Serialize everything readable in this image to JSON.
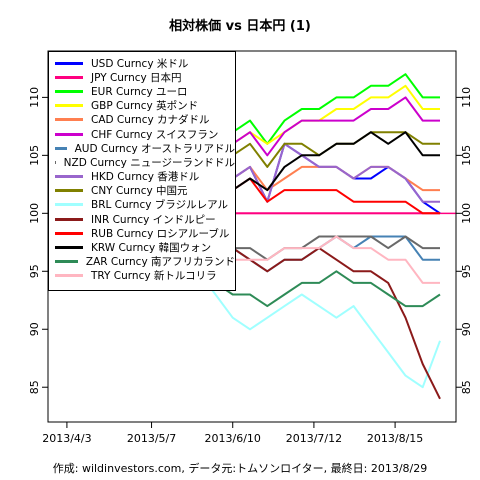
{
  "title": "相対株価 vs 日本円 (1)",
  "footer": "作成: wildinvestors.com, データ元:トムソンロイター, 最終日: 2013/8/29",
  "chart_data": {
    "type": "line",
    "title": "相対株価 vs 日本円 (1)",
    "xlabel": "",
    "ylabel": "",
    "x_ticks": [
      "2013/4/3",
      "2013/5/7",
      "2013/6/10",
      "2013/7/12",
      "2013/8/15"
    ],
    "y_ticks": [
      85,
      90,
      95,
      100,
      105,
      110
    ],
    "ylim": [
      82,
      114
    ],
    "grid": false,
    "legend_position": "top-left",
    "reference_line": 100,
    "x": [
      "2013/4/1",
      "2013/4/8",
      "2013/4/15",
      "2013/4/22",
      "2013/4/29",
      "2013/5/6",
      "2013/5/13",
      "2013/5/20",
      "2013/5/27",
      "2013/6/3",
      "2013/6/10",
      "2013/6/17",
      "2013/6/24",
      "2013/7/1",
      "2013/7/8",
      "2013/7/15",
      "2013/7/22",
      "2013/7/29",
      "2013/8/5",
      "2013/8/12",
      "2013/8/19",
      "2013/8/26",
      "2013/8/29"
    ],
    "series": [
      {
        "name": "USD Curncy 米ドル",
        "color": "#0000ff",
        "values": [
          100,
          102,
          104,
          105,
          106,
          107,
          108,
          110,
          109,
          106,
          103,
          104,
          101,
          106,
          105,
          104,
          104,
          103,
          103,
          104,
          103,
          101,
          100
        ]
      },
      {
        "name": "JPY Curncy 日本円",
        "color": "#ff0080",
        "values": [
          100,
          100,
          100,
          100,
          100,
          100,
          100,
          100,
          100,
          100,
          100,
          100,
          100,
          100,
          100,
          100,
          100,
          100,
          100,
          100,
          100,
          100,
          100
        ]
      },
      {
        "name": "EUR Curncy ユーロ",
        "color": "#00ff00",
        "values": [
          100,
          103,
          105,
          106,
          107,
          109,
          110,
          112,
          111,
          109,
          107,
          108,
          106,
          108,
          109,
          109,
          110,
          110,
          111,
          111,
          112,
          110,
          110
        ]
      },
      {
        "name": "GBP Curncy 英ポンド",
        "color": "#ffff00",
        "values": [
          100,
          103,
          104,
          106,
          107,
          108,
          109,
          111,
          110,
          108,
          106,
          107,
          106,
          107,
          108,
          108,
          109,
          109,
          110,
          110,
          111,
          109,
          109
        ]
      },
      {
        "name": "CAD Curncy カナダドル",
        "color": "#ff7f50",
        "values": [
          100,
          102,
          104,
          104,
          105,
          106,
          107,
          108,
          107,
          105,
          103,
          104,
          102,
          103,
          104,
          104,
          104,
          103,
          104,
          104,
          103,
          102,
          102
        ]
      },
      {
        "name": "CHF Curncy スイスフラン",
        "color": "#cc00cc",
        "values": [
          100,
          102,
          104,
          106,
          107,
          108,
          109,
          111,
          110,
          108,
          106,
          107,
          105,
          107,
          108,
          108,
          108,
          108,
          109,
          109,
          110,
          108,
          108
        ]
      },
      {
        "name": "AUD Curncy オーストラリアドル",
        "color": "#4682b4",
        "values": [
          100,
          103,
          104,
          105,
          104,
          103,
          102,
          103,
          101,
          99,
          97,
          96,
          95,
          96,
          96,
          97,
          98,
          97,
          98,
          98,
          98,
          96,
          96
        ]
      },
      {
        "name": "NZD Curncy ニュージーランドドル",
        "color": "#696969",
        "values": [
          100,
          103,
          105,
          106,
          105,
          104,
          103,
          104,
          101,
          99,
          97,
          97,
          96,
          97,
          97,
          98,
          98,
          98,
          98,
          97,
          98,
          97,
          97
        ]
      },
      {
        "name": "HKD Curncy 香港ドル",
        "color": "#9966cc",
        "values": [
          100,
          102,
          104,
          105,
          106,
          107,
          108,
          110,
          109,
          106,
          103,
          104,
          101,
          106,
          105,
          104,
          104,
          103,
          104,
          104,
          103,
          101,
          101
        ]
      },
      {
        "name": "CNY Curncy 中国元",
        "color": "#808000",
        "values": [
          100,
          102,
          104,
          105,
          106,
          107,
          108,
          110,
          109,
          107,
          105,
          106,
          104,
          106,
          106,
          105,
          106,
          106,
          107,
          107,
          107,
          106,
          106
        ]
      },
      {
        "name": "BRL Curncy ブラジルレアル",
        "color": "#a0ffff",
        "values": [
          100,
          102,
          103,
          102,
          101,
          100,
          98,
          97,
          95,
          93,
          91,
          90,
          91,
          92,
          93,
          92,
          91,
          92,
          90,
          88,
          86,
          85,
          89
        ]
      },
      {
        "name": "INR Curncy インドルピー",
        "color": "#8b1a1a",
        "values": [
          100,
          102,
          104,
          103,
          103,
          104,
          105,
          103,
          101,
          99,
          97,
          96,
          95,
          96,
          96,
          97,
          96,
          95,
          95,
          94,
          91,
          87,
          84
        ]
      },
      {
        "name": "RUB Curncy ロシアルーブル",
        "color": "#ff0000",
        "values": [
          100,
          102,
          103,
          104,
          105,
          106,
          106,
          107,
          106,
          104,
          102,
          103,
          101,
          102,
          102,
          102,
          102,
          101,
          101,
          101,
          101,
          100,
          100
        ]
      },
      {
        "name": "KRW Curncy 韓国ウォン",
        "color": "#000000",
        "values": [
          100,
          101,
          102,
          103,
          104,
          105,
          105,
          107,
          106,
          104,
          102,
          103,
          102,
          104,
          105,
          105,
          106,
          106,
          107,
          106,
          107,
          105,
          105
        ]
      },
      {
        "name": "ZAR Curncy 南アフリカランド",
        "color": "#2e8b57",
        "values": [
          100,
          101,
          101,
          100,
          99,
          98,
          98,
          98,
          96,
          94,
          93,
          93,
          92,
          93,
          94,
          94,
          95,
          94,
          94,
          93,
          92,
          92,
          93
        ]
      },
      {
        "name": "TRY Curncy 新トルコリラ",
        "color": "#ffb6c1",
        "values": [
          100,
          101,
          101,
          101,
          101,
          100,
          100,
          100,
          99,
          98,
          96,
          96,
          96,
          97,
          97,
          97,
          98,
          97,
          97,
          96,
          96,
          94,
          94
        ]
      }
    ]
  }
}
